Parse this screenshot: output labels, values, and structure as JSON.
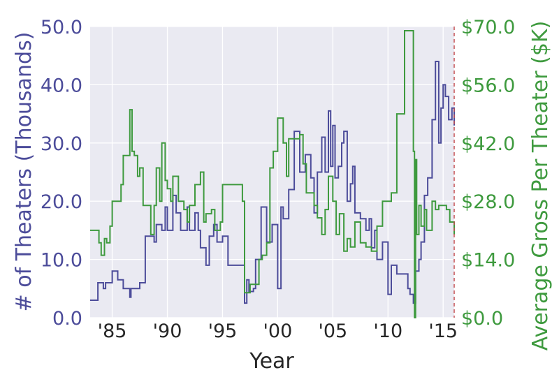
{
  "chart_data": {
    "type": "line",
    "xlabel": "Year",
    "ylabel_left": "# of Theaters (Thousands)",
    "ylabel_right": "Average Gross Per Theater ($K)",
    "xlim": [
      1983,
      2016
    ],
    "ylim_left": [
      0,
      50
    ],
    "ylim_right": [
      0,
      70
    ],
    "x_tick_values": [
      1985,
      1990,
      1995,
      2000,
      2005,
      2010,
      2015
    ],
    "x_tick_labels": [
      "'85",
      "'90",
      "'95",
      "'00",
      "'05",
      "'10",
      "'15"
    ],
    "y_left_tick_values": [
      0,
      10,
      20,
      30,
      40,
      50
    ],
    "y_left_tick_labels": [
      "0.0",
      "10.0",
      "20.0",
      "30.0",
      "40.0",
      "50.0"
    ],
    "y_right_tick_values": [
      0,
      14,
      28,
      42,
      56,
      70
    ],
    "y_right_tick_labels": [
      "$0.0",
      "$14.0",
      "$28.0",
      "$42.0",
      "$56.0",
      "$70.0"
    ],
    "reference_line_x": 2016,
    "grid": true,
    "series": [
      {
        "name": "# of Theaters (Thousands)",
        "axis": "left",
        "color": "#4C4C9A",
        "x": [
          1983.0,
          1983.6,
          1983.7,
          1984.0,
          1984.2,
          1984.4,
          1984.6,
          1985.0,
          1985.5,
          1986.0,
          1986.6,
          1986.7,
          1987.0,
          1987.5,
          1988.0,
          1988.5,
          1988.8,
          1989.0,
          1989.5,
          1989.8,
          1990.0,
          1990.5,
          1990.8,
          1991.2,
          1991.8,
          1992.0,
          1992.5,
          1992.8,
          1993.0,
          1993.5,
          1993.8,
          1994.2,
          1994.5,
          1995.0,
          1995.5,
          1995.8,
          1996.0,
          1996.5,
          1997.0,
          1997.2,
          1997.4,
          1997.8,
          1998.0,
          1998.5,
          1999.0,
          1999.5,
          2000.0,
          2000.3,
          2000.5,
          2001.0,
          2001.5,
          2002.0,
          2002.5,
          2003.0,
          2003.3,
          2003.6,
          2004.0,
          2004.3,
          2004.6,
          2004.8,
          2005.0,
          2005.2,
          2005.5,
          2005.8,
          2006.0,
          2006.3,
          2006.6,
          2006.8,
          2007.0,
          2007.5,
          2008.0,
          2008.3,
          2008.5,
          2008.8,
          2009.0,
          2009.5,
          2010.0,
          2010.3,
          2010.8,
          2011.0,
          2011.5,
          2011.8,
          2012.0,
          2012.3,
          2012.5,
          2012.8,
          2013.0,
          2013.3,
          2013.6,
          2014.0,
          2014.3,
          2014.6,
          2014.8,
          2015.0,
          2015.2,
          2015.5,
          2015.8,
          2016.0
        ],
        "y": [
          3.0,
          3.0,
          6.0,
          6.0,
          5.0,
          6.0,
          6.0,
          8.0,
          6.5,
          5.0,
          3.5,
          5.0,
          5.0,
          6.0,
          14.0,
          14.0,
          13.0,
          16.0,
          15.0,
          19.0,
          15.0,
          21.0,
          18.0,
          15.0,
          19.0,
          15.0,
          18.0,
          15.0,
          12.0,
          9.0,
          14.0,
          16.0,
          13.0,
          14.0,
          9.0,
          9.0,
          9.0,
          9.0,
          2.5,
          6.5,
          4.5,
          5.0,
          10.0,
          19.0,
          13.0,
          16.0,
          5.0,
          19.0,
          17.0,
          22.0,
          32.0,
          25.0,
          28.0,
          24.0,
          18.0,
          25.0,
          31.0,
          25.0,
          35.5,
          26.0,
          33.0,
          24.0,
          26.0,
          30.0,
          32.0,
          20.0,
          23.0,
          26.0,
          18.0,
          17.0,
          15.0,
          17.0,
          12.0,
          15.0,
          10.0,
          13.0,
          4.0,
          9.0,
          7.5,
          7.5,
          7.5,
          5.0,
          4.0,
          2.5,
          8.0,
          10.0,
          13.0,
          21.0,
          24.0,
          34.0,
          44.0,
          30.0,
          36.0,
          40.0,
          38.0,
          34.0,
          36.0,
          33.0
        ]
      },
      {
        "name": "Average Gross Per Theater ($K)",
        "axis": "right",
        "color": "#3E9A3E",
        "x": [
          1983.0,
          1983.6,
          1983.8,
          1984.0,
          1984.3,
          1984.5,
          1984.8,
          1985.0,
          1985.5,
          1985.8,
          1986.0,
          1986.5,
          1986.6,
          1986.8,
          1987.0,
          1987.3,
          1987.5,
          1987.8,
          1988.0,
          1988.5,
          1988.8,
          1989.0,
          1989.3,
          1989.5,
          1989.8,
          1990.0,
          1990.3,
          1990.5,
          1991.0,
          1991.5,
          1991.8,
          1992.0,
          1992.5,
          1993.0,
          1993.3,
          1993.5,
          1994.0,
          1994.3,
          1994.8,
          1995.0,
          1995.5,
          1996.0,
          1996.5,
          1996.8,
          1997.0,
          1997.5,
          1998.0,
          1998.3,
          1998.6,
          1999.0,
          1999.3,
          1999.6,
          2000.0,
          2000.5,
          2000.8,
          2001.0,
          2001.5,
          2002.0,
          2002.3,
          2002.6,
          2003.0,
          2003.3,
          2003.6,
          2004.0,
          2004.3,
          2004.6,
          2005.0,
          2005.3,
          2005.6,
          2006.0,
          2006.3,
          2006.6,
          2007.0,
          2007.5,
          2008.0,
          2008.5,
          2009.0,
          2009.5,
          2010.0,
          2010.3,
          2010.8,
          2011.0,
          2011.5,
          2011.8,
          2012.0,
          2012.2,
          2012.3,
          2012.4,
          2012.5,
          2012.6,
          2012.8,
          2013.0,
          2013.3,
          2013.5,
          2014.0,
          2014.3,
          2014.6,
          2015.0,
          2015.3,
          2015.6,
          2016.0
        ],
        "y": [
          21.0,
          21.0,
          18.0,
          15.0,
          19.0,
          18.0,
          22.0,
          28.0,
          28.0,
          32.0,
          39.0,
          39.0,
          50.0,
          40.0,
          39.0,
          34.0,
          36.0,
          27.0,
          27.0,
          20.0,
          27.0,
          36.0,
          28.0,
          42.0,
          33.0,
          31.0,
          28.0,
          34.0,
          28.0,
          26.0,
          23.0,
          27.0,
          32.0,
          35.0,
          23.0,
          25.0,
          26.0,
          21.0,
          23.0,
          32.0,
          32.0,
          32.0,
          32.0,
          28.0,
          6.0,
          8.0,
          8.0,
          14.0,
          15.0,
          18.0,
          36.0,
          40.0,
          48.0,
          42.0,
          34.0,
          43.0,
          43.0,
          44.0,
          37.0,
          30.0,
          30.0,
          27.0,
          24.0,
          20.0,
          26.0,
          34.0,
          28.0,
          20.0,
          25.0,
          16.0,
          19.0,
          17.0,
          23.0,
          18.0,
          17.0,
          16.0,
          22.0,
          28.0,
          28.0,
          30.0,
          49.0,
          49.0,
          69.0,
          69.0,
          69.0,
          69.0,
          40.0,
          0.0,
          38.0,
          20.0,
          27.0,
          22.0,
          26.0,
          21.0,
          28.0,
          26.0,
          27.0,
          27.0,
          26.0,
          23.0,
          20.0
        ]
      }
    ]
  }
}
